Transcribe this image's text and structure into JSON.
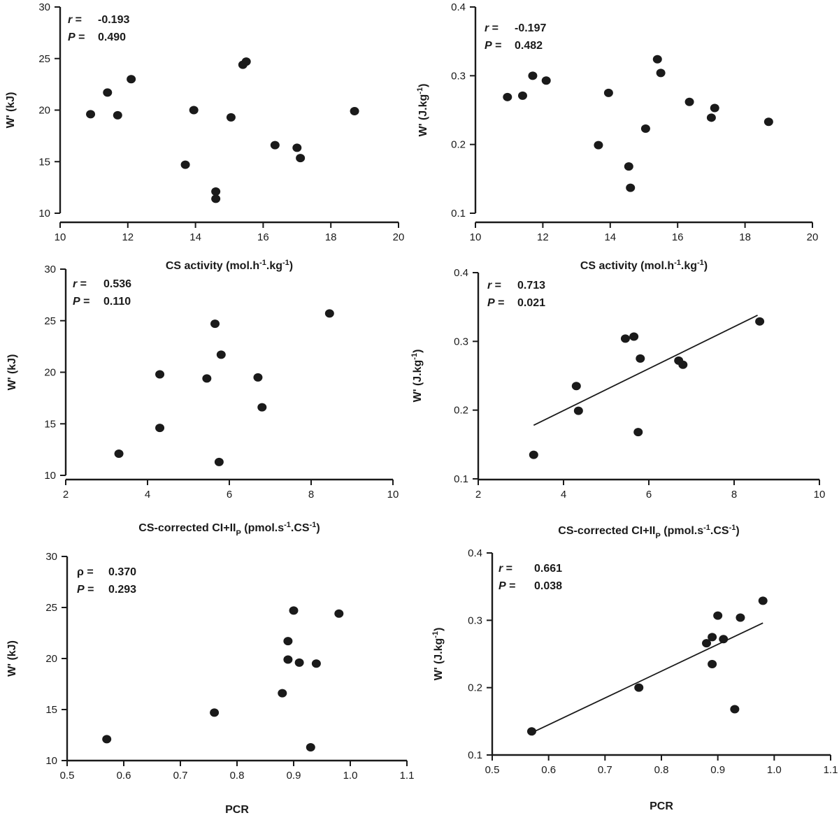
{
  "chart_data": [
    {
      "id": "p1",
      "type": "scatter",
      "xlabel": "CS activity (mol.h",
      "xlabel_sup1": "-1",
      "xlabel_mid": ".kg",
      "xlabel_sup2": "-1",
      "xlabel_end": ")",
      "ylabel": "W' (kJ)",
      "xlim": [
        10,
        20
      ],
      "ylim": [
        10,
        30
      ],
      "xticks": [
        10,
        12,
        14,
        16,
        18,
        20
      ],
      "yticks": [
        10,
        15,
        20,
        25,
        30
      ],
      "stat1_symbol": "r",
      "stat1_label": "r =",
      "stat1_value": "-0.193",
      "stat2_label": "P =",
      "stat2_value": "0.490",
      "points": [
        [
          10.9,
          19.6
        ],
        [
          11.4,
          21.7
        ],
        [
          11.7,
          19.5
        ],
        [
          12.1,
          23.0
        ],
        [
          13.7,
          14.7
        ],
        [
          13.95,
          20.0
        ],
        [
          14.6,
          12.1
        ],
        [
          14.6,
          11.4
        ],
        [
          15.05,
          19.3
        ],
        [
          15.4,
          24.4
        ],
        [
          15.5,
          24.7
        ],
        [
          16.35,
          16.6
        ],
        [
          17.0,
          16.35
        ],
        [
          17.1,
          15.35
        ],
        [
          18.7,
          19.9
        ]
      ],
      "fit": null
    },
    {
      "id": "p2",
      "type": "scatter",
      "xlabel": "CS activity (mol.h",
      "xlabel_sup1": "-1",
      "xlabel_mid": ".kg",
      "xlabel_sup2": "-1",
      "xlabel_end": ")",
      "ylabel": "W' (J.kg",
      "ylabel_sup": "-1",
      "ylabel_end": ")",
      "xlim": [
        10,
        20
      ],
      "ylim": [
        0.1,
        0.4
      ],
      "xticks": [
        10,
        12,
        14,
        16,
        18,
        20
      ],
      "yticks": [
        0.1,
        0.2,
        0.3,
        0.4
      ],
      "stat1_label": "r =",
      "stat1_value": "-0.197",
      "stat2_label": "P =",
      "stat2_value": "0.482",
      "points": [
        [
          10.95,
          0.269
        ],
        [
          11.4,
          0.271
        ],
        [
          11.7,
          0.3
        ],
        [
          12.1,
          0.293
        ],
        [
          13.65,
          0.199
        ],
        [
          13.95,
          0.275
        ],
        [
          14.55,
          0.168
        ],
        [
          14.6,
          0.137
        ],
        [
          15.05,
          0.223
        ],
        [
          15.4,
          0.324
        ],
        [
          15.5,
          0.304
        ],
        [
          16.35,
          0.262
        ],
        [
          17.0,
          0.239
        ],
        [
          17.1,
          0.253
        ],
        [
          18.7,
          0.233
        ]
      ],
      "fit": null
    },
    {
      "id": "p3",
      "type": "scatter",
      "xlabel": "CS-corrected CI+II",
      "xlabel_sub": "P",
      "xlabel_rest": " (pmol.s",
      "xlabel_sup1": "-1",
      "xlabel_mid": ".CS",
      "xlabel_sup2": "-1",
      "xlabel_end": ")",
      "ylabel": "W' (kJ)",
      "xlim": [
        2,
        10
      ],
      "ylim": [
        10,
        30
      ],
      "xticks": [
        2,
        4,
        6,
        8,
        10
      ],
      "yticks": [
        10,
        15,
        20,
        25,
        30
      ],
      "stat1_label": "r =",
      "stat1_value": "0.536",
      "stat2_label": "P =",
      "stat2_value": "0.110",
      "points": [
        [
          3.3,
          12.1
        ],
        [
          4.3,
          19.8
        ],
        [
          4.3,
          14.6
        ],
        [
          5.45,
          19.4
        ],
        [
          5.65,
          24.7
        ],
        [
          5.75,
          11.3
        ],
        [
          5.8,
          21.7
        ],
        [
          6.7,
          19.5
        ],
        [
          6.8,
          16.6
        ],
        [
          8.45,
          25.7
        ]
      ],
      "fit": null
    },
    {
      "id": "p4",
      "type": "scatter",
      "xlabel": "CS-corrected CI+II",
      "xlabel_sub": "P",
      "xlabel_rest": " (pmol.s",
      "xlabel_sup1": "-1",
      "xlabel_mid": ".CS",
      "xlabel_sup2": "-1",
      "xlabel_end": ")",
      "ylabel": "W' (J.kg",
      "ylabel_sup": "-1",
      "ylabel_end": ")",
      "xlim": [
        2,
        10
      ],
      "ylim": [
        0.1,
        0.4
      ],
      "xticks": [
        2,
        4,
        6,
        8,
        10
      ],
      "yticks": [
        0.1,
        0.2,
        0.3,
        0.4
      ],
      "stat1_label": "r =",
      "stat1_value": "0.713",
      "stat2_label": "P =",
      "stat2_value": "0.021",
      "points": [
        [
          3.3,
          0.135
        ],
        [
          4.3,
          0.235
        ],
        [
          4.35,
          0.199
        ],
        [
          5.45,
          0.304
        ],
        [
          5.65,
          0.307
        ],
        [
          5.75,
          0.168
        ],
        [
          5.8,
          0.275
        ],
        [
          6.7,
          0.272
        ],
        [
          6.8,
          0.266
        ],
        [
          8.6,
          0.329
        ]
      ],
      "fit": [
        [
          3.3,
          0.178
        ],
        [
          8.55,
          0.338
        ]
      ]
    },
    {
      "id": "p5",
      "type": "scatter",
      "xlabel": "PCR",
      "ylabel": "W' (kJ)",
      "xlim": [
        0.5,
        1.1
      ],
      "ylim": [
        10,
        30
      ],
      "xticks": [
        "0.5",
        "0.6",
        "0.7",
        "0.8",
        "0.9",
        "1.0",
        "1.1"
      ],
      "yticks": [
        10,
        15,
        20,
        25,
        30
      ],
      "stat1_label": "ρ =",
      "stat1_value": "0.370",
      "stat2_label": "P =",
      "stat2_value": "0.293",
      "points": [
        [
          0.57,
          12.1
        ],
        [
          0.76,
          14.7
        ],
        [
          0.88,
          16.6
        ],
        [
          0.89,
          21.7
        ],
        [
          0.89,
          19.9
        ],
        [
          0.9,
          24.7
        ],
        [
          0.91,
          19.6
        ],
        [
          0.93,
          11.3
        ],
        [
          0.94,
          19.5
        ],
        [
          0.98,
          24.4
        ]
      ],
      "fit": null
    },
    {
      "id": "p6",
      "type": "scatter",
      "xlabel": "PCR",
      "ylabel": "W' (J.kg",
      "ylabel_sup": "-1",
      "ylabel_end": ")",
      "xlim": [
        0.5,
        1.1
      ],
      "ylim": [
        0.1,
        0.4
      ],
      "xticks": [
        "0.5",
        "0.6",
        "0.7",
        "0.8",
        "0.9",
        "1.0",
        "1.1"
      ],
      "yticks": [
        0.1,
        0.2,
        0.3,
        0.4
      ],
      "stat1_label": "r =",
      "stat1_value": "0.661",
      "stat2_label": "P =",
      "stat2_value": "0.038",
      "points": [
        [
          0.57,
          0.135
        ],
        [
          0.76,
          0.2
        ],
        [
          0.88,
          0.266
        ],
        [
          0.89,
          0.275
        ],
        [
          0.89,
          0.235
        ],
        [
          0.9,
          0.307
        ],
        [
          0.91,
          0.272
        ],
        [
          0.93,
          0.168
        ],
        [
          0.94,
          0.304
        ],
        [
          0.98,
          0.329
        ]
      ],
      "fit": [
        [
          0.57,
          0.133
        ],
        [
          0.98,
          0.296
        ]
      ]
    }
  ]
}
